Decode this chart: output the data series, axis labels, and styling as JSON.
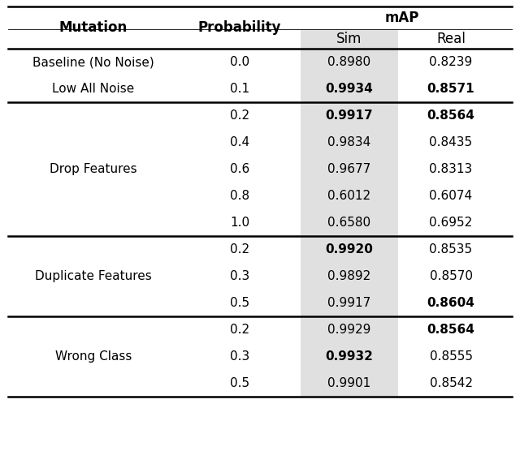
{
  "map_header": "mAP",
  "sim_header": "Sim",
  "real_header": "Real",
  "mutation_header": "Mutation",
  "probability_header": "Probability",
  "rows": [
    {
      "probability": "0.0",
      "sim": "0.8980",
      "real": "0.8239",
      "sim_bold": false,
      "real_bold": false,
      "section": "baseline"
    },
    {
      "probability": "0.1",
      "sim": "0.9934",
      "real": "0.8571",
      "sim_bold": true,
      "real_bold": true,
      "section": "baseline"
    },
    {
      "probability": "0.2",
      "sim": "0.9917",
      "real": "0.8564",
      "sim_bold": true,
      "real_bold": true,
      "section": "drop"
    },
    {
      "probability": "0.4",
      "sim": "0.9834",
      "real": "0.8435",
      "sim_bold": false,
      "real_bold": false,
      "section": "drop"
    },
    {
      "probability": "0.6",
      "sim": "0.9677",
      "real": "0.8313",
      "sim_bold": false,
      "real_bold": false,
      "section": "drop"
    },
    {
      "probability": "0.8",
      "sim": "0.6012",
      "real": "0.6074",
      "sim_bold": false,
      "real_bold": false,
      "section": "drop"
    },
    {
      "probability": "1.0",
      "sim": "0.6580",
      "real": "0.6952",
      "sim_bold": false,
      "real_bold": false,
      "section": "drop"
    },
    {
      "probability": "0.2",
      "sim": "0.9920",
      "real": "0.8535",
      "sim_bold": true,
      "real_bold": false,
      "section": "dup"
    },
    {
      "probability": "0.3",
      "sim": "0.9892",
      "real": "0.8570",
      "sim_bold": false,
      "real_bold": false,
      "section": "dup"
    },
    {
      "probability": "0.5",
      "sim": "0.9917",
      "real": "0.8604",
      "sim_bold": false,
      "real_bold": true,
      "section": "dup"
    },
    {
      "probability": "0.2",
      "sim": "0.9929",
      "real": "0.8564",
      "sim_bold": false,
      "real_bold": true,
      "section": "wrong"
    },
    {
      "probability": "0.3",
      "sim": "0.9932",
      "real": "0.8555",
      "sim_bold": true,
      "real_bold": false,
      "section": "wrong"
    },
    {
      "probability": "0.5",
      "sim": "0.9901",
      "real": "0.8542",
      "sim_bold": false,
      "real_bold": false,
      "section": "wrong"
    }
  ],
  "sections": {
    "baseline": {
      "label_rows": [
        0,
        1
      ],
      "labels": [
        "Baseline (No Noise)",
        "Low All Noise"
      ],
      "multi": false
    },
    "drop": {
      "label_rows": [
        2,
        6
      ],
      "labels": [
        "Drop Features"
      ],
      "multi": true
    },
    "dup": {
      "label_rows": [
        7,
        9
      ],
      "labels": [
        "Duplicate Features"
      ],
      "multi": true
    },
    "wrong": {
      "label_rows": [
        10,
        12
      ],
      "labels": [
        "Wrong Class"
      ],
      "multi": true
    }
  },
  "thick_lw": 1.8,
  "thin_lw": 0.6,
  "bg_sim": "#e0e0e0",
  "header_fs": 12,
  "data_fs": 11
}
